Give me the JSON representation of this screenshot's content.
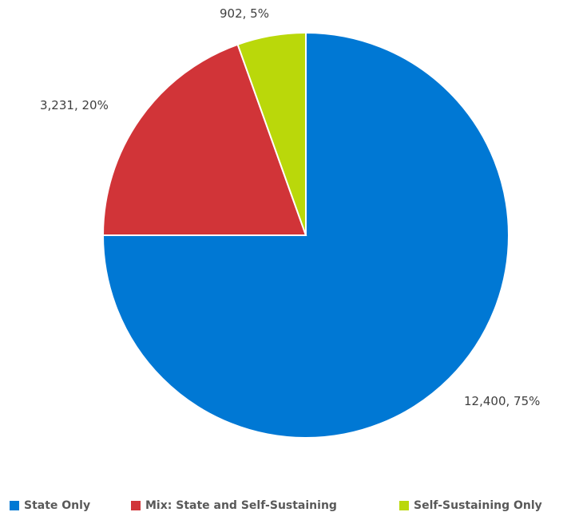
{
  "chart_data": {
    "type": "pie",
    "title": "",
    "start_angle_deg": 0,
    "direction": "clockwise",
    "slices": [
      {
        "name": "State Only",
        "value": 12400,
        "percent": 75,
        "label": "12,400, 75%",
        "color": "#0078D4"
      },
      {
        "name": "Mix: State and Self-Sustaining",
        "value": 3231,
        "percent": 20,
        "label": "3,231, 20%",
        "color": "#D13438"
      },
      {
        "name": "Self-Sustaining Only",
        "value": 902,
        "percent": 5,
        "label": "902, 5%",
        "color": "#BAD80A"
      }
    ],
    "legend": {
      "placement": "bottom",
      "items": [
        "State Only",
        "Mix: State and Self-Sustaining",
        "Self-Sustaining Only"
      ]
    }
  }
}
